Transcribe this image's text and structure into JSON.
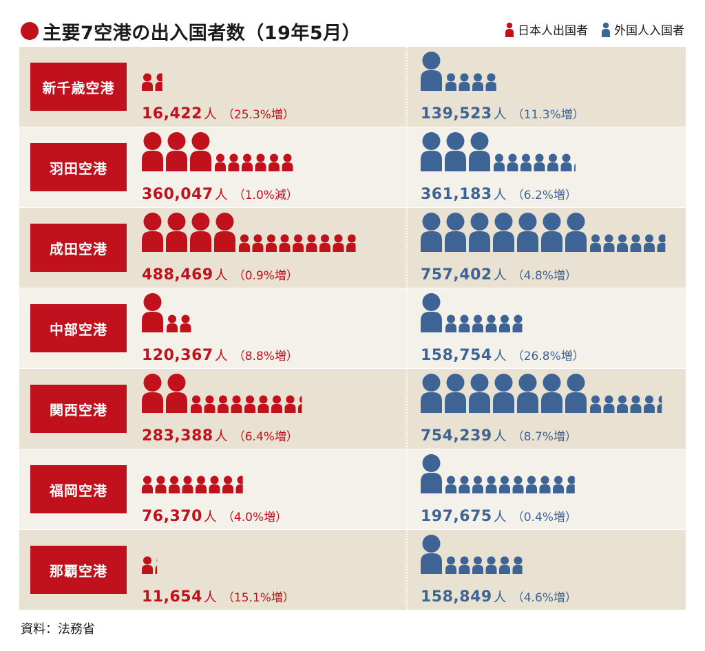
{
  "title": "主要7空港の出入国者数（19年5月）",
  "legend": [
    {
      "label": "日本人出国者",
      "color": "#c0111c"
    },
    {
      "label": "外国人入国者",
      "color": "#3e6496"
    }
  ],
  "source": "資料：法務省",
  "colors": {
    "red": "#c0111c",
    "blue": "#3e6496",
    "band_dark": "#e9e1d1",
    "band_light": "#f4f1ea"
  },
  "icon_scale": {
    "large": 100000,
    "small": 10000
  },
  "chart_data": {
    "type": "pictogram",
    "title": "主要7空港の出入国者数（19年5月）",
    "unit": "人",
    "series": [
      {
        "name": "日本人出国者",
        "color": "#c0111c"
      },
      {
        "name": "外国人入国者",
        "color": "#3e6496"
      }
    ],
    "rows": [
      {
        "airport": "新千歳空港",
        "japanese": {
          "value": 16422,
          "label": "16,422",
          "change": "（25.3%増）"
        },
        "foreign": {
          "value": 139523,
          "label": "139,523",
          "change": "（11.3%増）"
        }
      },
      {
        "airport": "羽田空港",
        "japanese": {
          "value": 360047,
          "label": "360,047",
          "change": "（1.0%減）"
        },
        "foreign": {
          "value": 361183,
          "label": "361,183",
          "change": "（6.2%増）"
        }
      },
      {
        "airport": "成田空港",
        "japanese": {
          "value": 488469,
          "label": "488,469",
          "change": "（0.9%増）"
        },
        "foreign": {
          "value": 757402,
          "label": "757,402",
          "change": "（4.8%増）"
        }
      },
      {
        "airport": "中部空港",
        "japanese": {
          "value": 120367,
          "label": "120,367",
          "change": "（8.8%増）"
        },
        "foreign": {
          "value": 158754,
          "label": "158,754",
          "change": "（26.8%増）"
        }
      },
      {
        "airport": "関西空港",
        "japanese": {
          "value": 283388,
          "label": "283,388",
          "change": "（6.4%増）"
        },
        "foreign": {
          "value": 754239,
          "label": "754,239",
          "change": "（8.7%増）"
        }
      },
      {
        "airport": "福岡空港",
        "japanese": {
          "value": 76370,
          "label": "76,370",
          "change": "（4.0%増）"
        },
        "foreign": {
          "value": 197675,
          "label": "197,675",
          "change": "（0.4%増）"
        }
      },
      {
        "airport": "那覇空港",
        "japanese": {
          "value": 11654,
          "label": "11,654",
          "change": "（15.1%増）"
        },
        "foreign": {
          "value": 158849,
          "label": "158,849",
          "change": "（4.6%増）"
        }
      }
    ]
  }
}
